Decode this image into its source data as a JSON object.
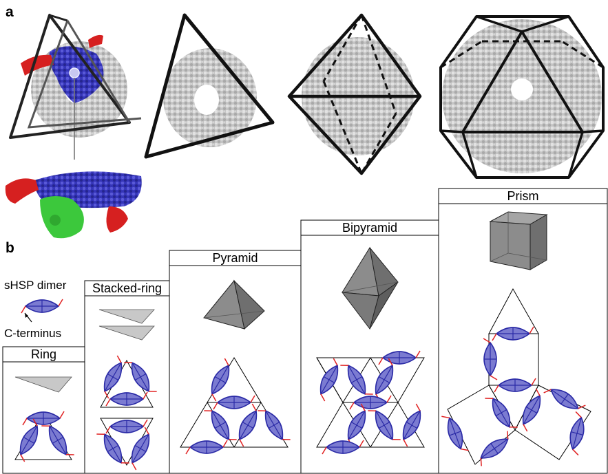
{
  "figure": {
    "panel_a_letter": "a",
    "panel_b_letter": "b",
    "legend": {
      "dimer_label": "sHSP dimer",
      "cterm_label": "C-terminus"
    },
    "columns": [
      {
        "title": "Ring"
      },
      {
        "title": "Stacked-ring"
      },
      {
        "title": "Pyramid"
      },
      {
        "title": "Bipyramid"
      },
      {
        "title": "Prism"
      }
    ]
  },
  "colors": {
    "protein_surface": "#c8c8c8",
    "dimer_fill": "#7b7bd1",
    "dimer_stroke": "#2a2aa6",
    "c_terminus": "#e02020",
    "green_domain": "#3cc83c",
    "solid_fill": "#8c8c8c",
    "flat_plate": "#c8c8c8"
  }
}
